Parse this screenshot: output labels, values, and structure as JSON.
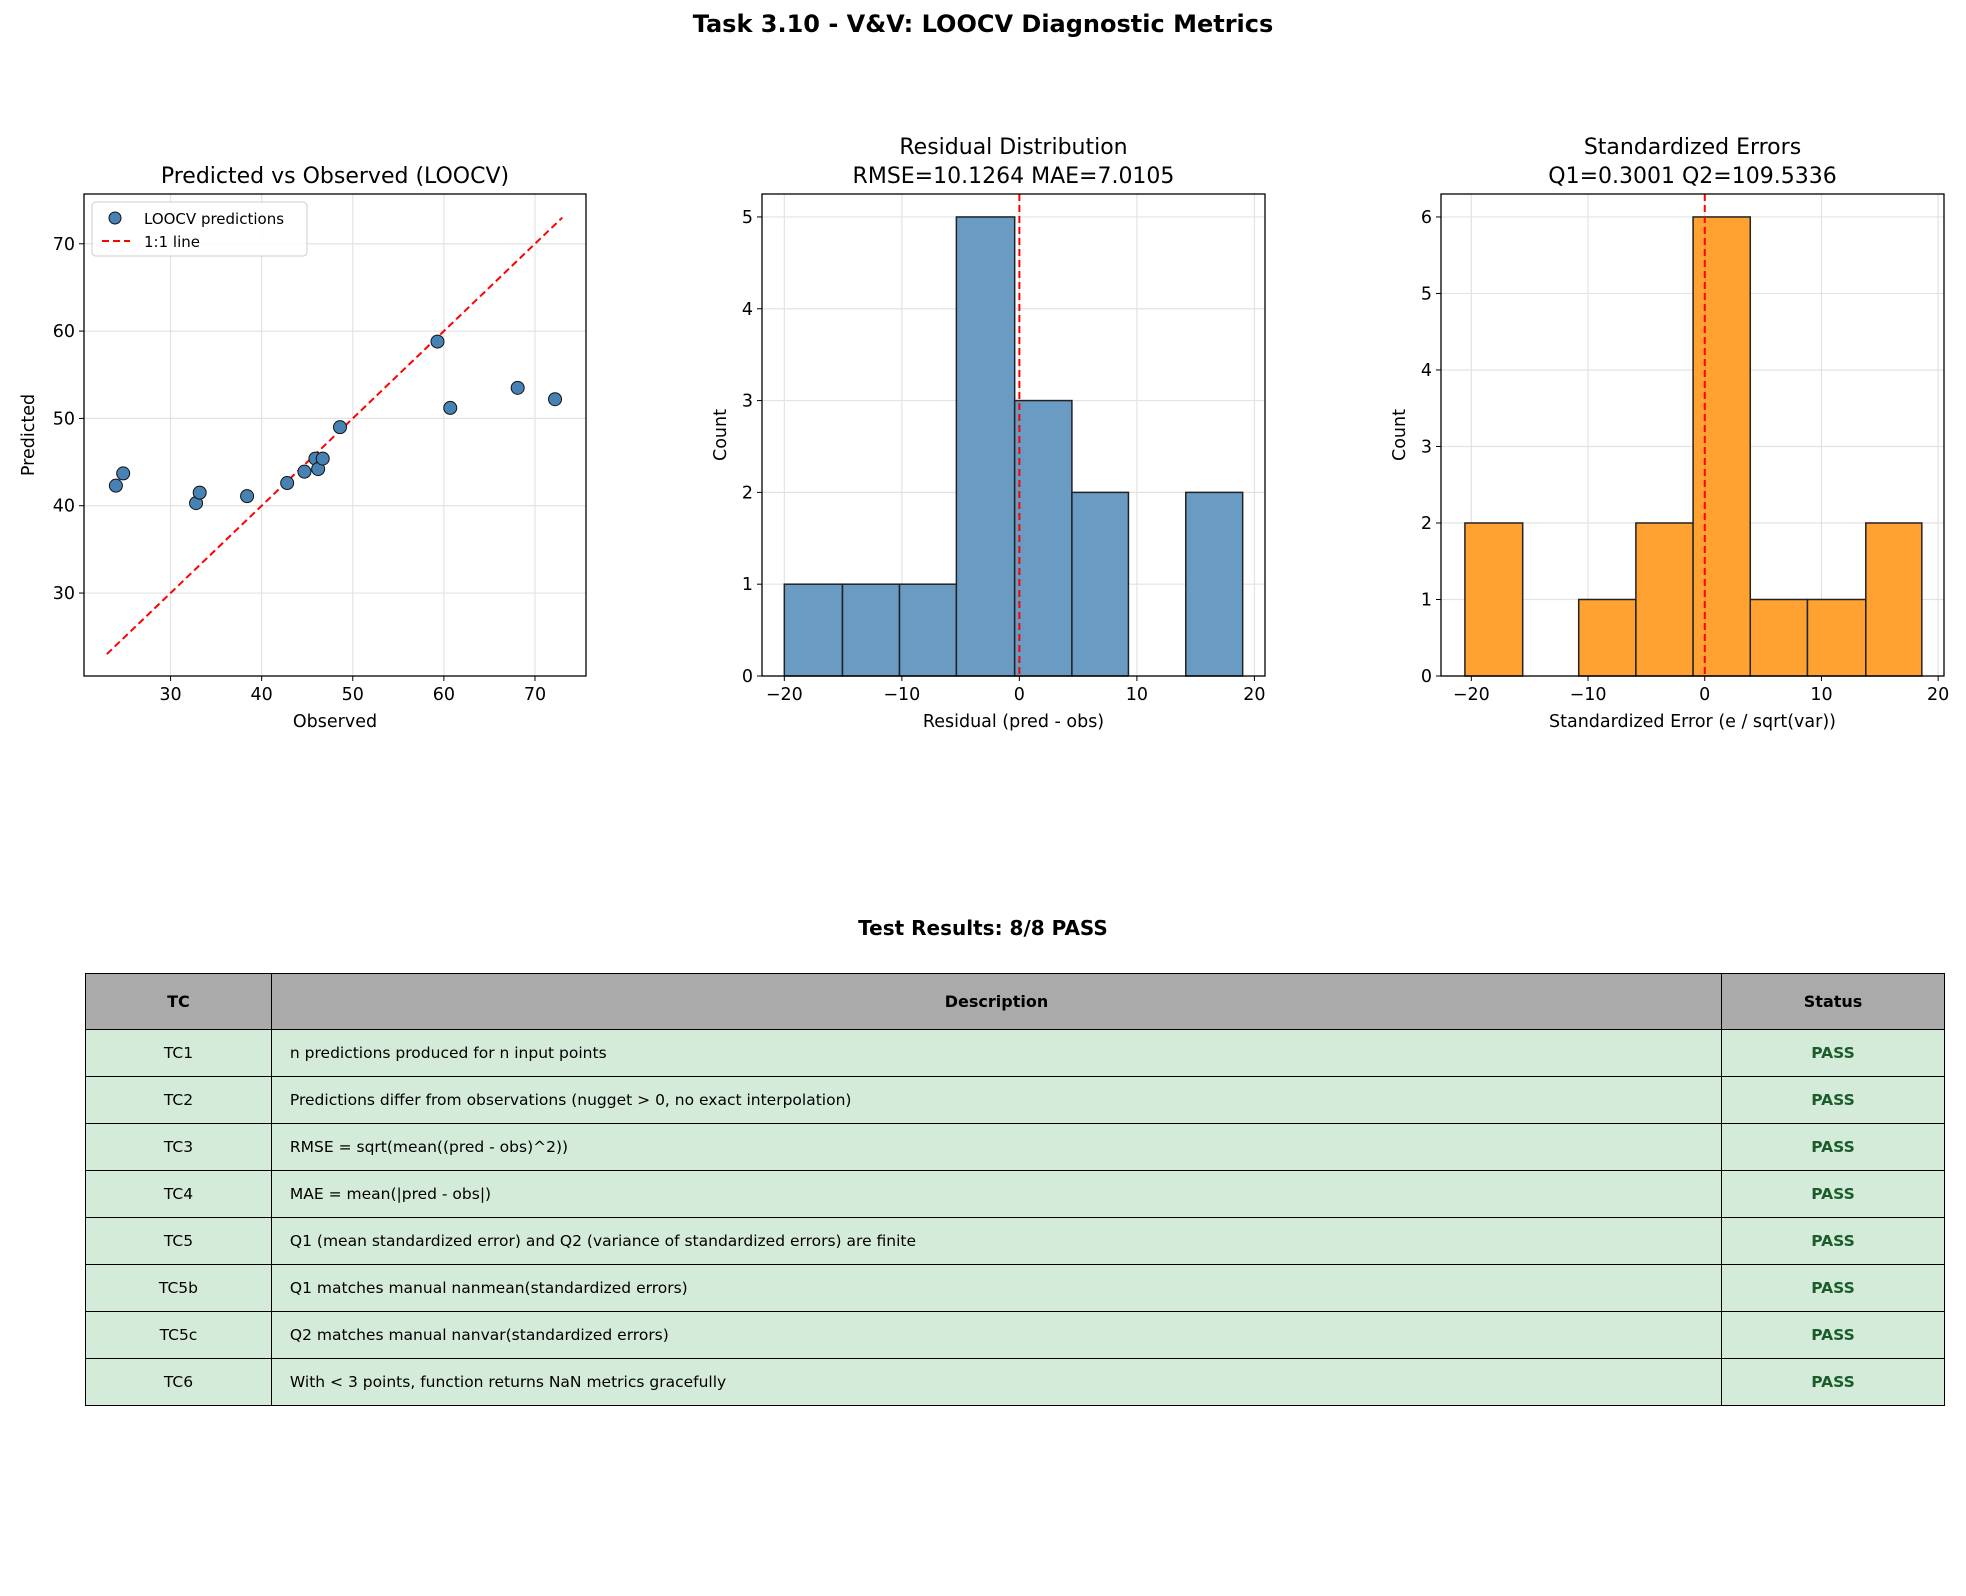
{
  "suptitle": "Task 3.10 - V&V: LOOCV Diagnostic Metrics",
  "chart_data": [
    {
      "type": "scatter",
      "title": "Predicted vs Observed (LOOCV)",
      "xlabel": "Observed",
      "ylabel": "Predicted",
      "xlim": [
        20.5,
        75.6
      ],
      "ylim": [
        20.5,
        75.7
      ],
      "xticks": [
        30,
        40,
        50,
        60,
        70
      ],
      "yticks": [
        30,
        40,
        50,
        60,
        70
      ],
      "grid": true,
      "legend": "top-left",
      "series": [
        {
          "name": "LOOCV predictions",
          "color": "#4682b4",
          "x": [
            24.0,
            24.8,
            32.8,
            33.2,
            38.4,
            42.8,
            44.7,
            45.9,
            46.2,
            46.7,
            48.6,
            59.3,
            60.7,
            68.1,
            72.2
          ],
          "y": [
            42.3,
            43.7,
            40.3,
            41.5,
            41.1,
            42.6,
            43.9,
            45.4,
            44.2,
            45.4,
            49.0,
            58.8,
            51.2,
            53.5,
            52.2
          ]
        },
        {
          "name": "1:1 line",
          "color": "#ff0000",
          "style": "dashed",
          "x": [
            23.0,
            73.0
          ],
          "y": [
            23.0,
            73.0
          ]
        }
      ]
    },
    {
      "type": "bar",
      "title": "Residual Distribution",
      "subtitle": "RMSE=10.1264  MAE=7.0105",
      "xlabel": "Residual (pred - obs)",
      "ylabel": "Count",
      "xlim": [
        -21.9,
        20.9
      ],
      "ylim": [
        0,
        5.25
      ],
      "xticks": [
        -20,
        -10,
        0,
        10,
        20
      ],
      "yticks": [
        0,
        1,
        2,
        3,
        4,
        5
      ],
      "grid": true,
      "color": "#6a9bc3",
      "vline": 0,
      "bin_edges": [
        -20.0,
        -15.05,
        -10.2,
        -5.36,
        -0.4,
        4.47,
        9.28,
        14.16,
        19.0
      ],
      "counts": [
        1,
        1,
        1,
        5,
        3,
        2,
        0,
        2
      ]
    },
    {
      "type": "bar",
      "title": "Standardized Errors",
      "subtitle": "Q1=0.3001  Q2=109.5336",
      "xlabel": "Standardized Error (e / sqrt(var))",
      "ylabel": "Count",
      "xlim": [
        -22.6,
        20.5
      ],
      "ylim": [
        0,
        6.3
      ],
      "xticks": [
        -20,
        -10,
        0,
        10,
        20
      ],
      "yticks": [
        0,
        1,
        2,
        3,
        4,
        5,
        6
      ],
      "grid": true,
      "color": "#ffa232",
      "vline": 0,
      "bin_edges": [
        -20.55,
        -15.6,
        -10.8,
        -5.9,
        -1.0,
        3.9,
        8.8,
        13.8,
        18.6
      ],
      "counts": [
        2,
        0,
        1,
        2,
        6,
        1,
        1,
        2
      ]
    }
  ],
  "table": {
    "title": "Test Results: 8/8 PASS",
    "headers": [
      "TC",
      "Description",
      "Status"
    ],
    "rows": [
      [
        "TC1",
        "n predictions produced for n input points",
        "PASS"
      ],
      [
        "TC2",
        "Predictions differ from observations (nugget > 0, no exact interpolation)",
        "PASS"
      ],
      [
        "TC3",
        "RMSE = sqrt(mean((pred - obs)^2))",
        "PASS"
      ],
      [
        "TC4",
        "MAE = mean(|pred - obs|)",
        "PASS"
      ],
      [
        "TC5",
        "Q1 (mean standardized error) and Q2 (variance of standardized errors) are finite",
        "PASS"
      ],
      [
        "TC5b",
        "Q1 matches manual nanmean(standardized errors)",
        "PASS"
      ],
      [
        "TC5c",
        "Q2 matches manual nanvar(standardized errors)",
        "PASS"
      ],
      [
        "TC6",
        "With < 3 points, function returns NaN metrics gracefully",
        "PASS"
      ]
    ],
    "header_color": "#aaaaaa",
    "row_color": "#d5ebd9",
    "pass_color": "#1a5c2a"
  }
}
